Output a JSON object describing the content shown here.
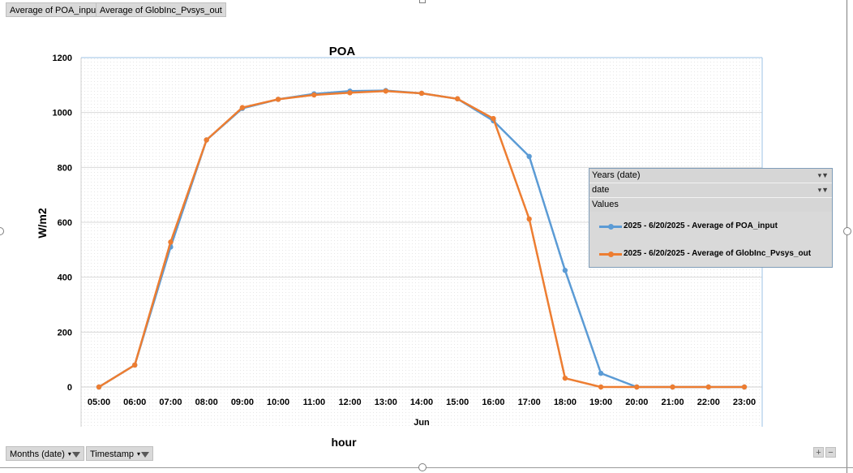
{
  "pivot": {
    "value_fields": [
      "Average of POA_input",
      "Average of GlobInc_Pvsys_out"
    ],
    "axis_fields": [
      "Months (date)",
      "Timestamp"
    ]
  },
  "legend": {
    "field1": "Years (date)",
    "field2": "date",
    "values_header": "Values",
    "entries": [
      "2025 - 6/20/2025 - Average of POA_input",
      "2025 - 6/20/2025 - Average of GlobInc_Pvsys_out"
    ]
  },
  "zoom": {
    "plus": "+",
    "minus": "−"
  },
  "chart_data": {
    "type": "line",
    "title": "POA",
    "ylabel": "W/m2",
    "xlabel": "hour",
    "x_group_label": "Jun",
    "categories": [
      "05:00",
      "06:00",
      "07:00",
      "08:00",
      "09:00",
      "10:00",
      "11:00",
      "12:00",
      "13:00",
      "14:00",
      "15:00",
      "16:00",
      "17:00",
      "18:00",
      "19:00",
      "20:00",
      "21:00",
      "22:00",
      "23:00"
    ],
    "ylim": [
      0,
      1200
    ],
    "yticks": [
      0,
      200,
      400,
      600,
      800,
      1000,
      1200
    ],
    "grid": true,
    "legend_position": "right",
    "series": [
      {
        "name": "2025 - 6/20/2025 - Average of POA_input",
        "color": "#5b9bd5",
        "values": [
          0,
          80,
          510,
          900,
          1015,
          1048,
          1068,
          1078,
          1080,
          1070,
          1050,
          970,
          840,
          425,
          50,
          0,
          0,
          0,
          0
        ]
      },
      {
        "name": "2025 - 6/20/2025 - Average of GlobInc_Pvsys_out",
        "color": "#ed7d31",
        "values": [
          0,
          80,
          528,
          900,
          1018,
          1048,
          1064,
          1072,
          1078,
          1070,
          1050,
          978,
          612,
          32,
          0,
          0,
          0,
          0,
          0
        ]
      }
    ]
  }
}
